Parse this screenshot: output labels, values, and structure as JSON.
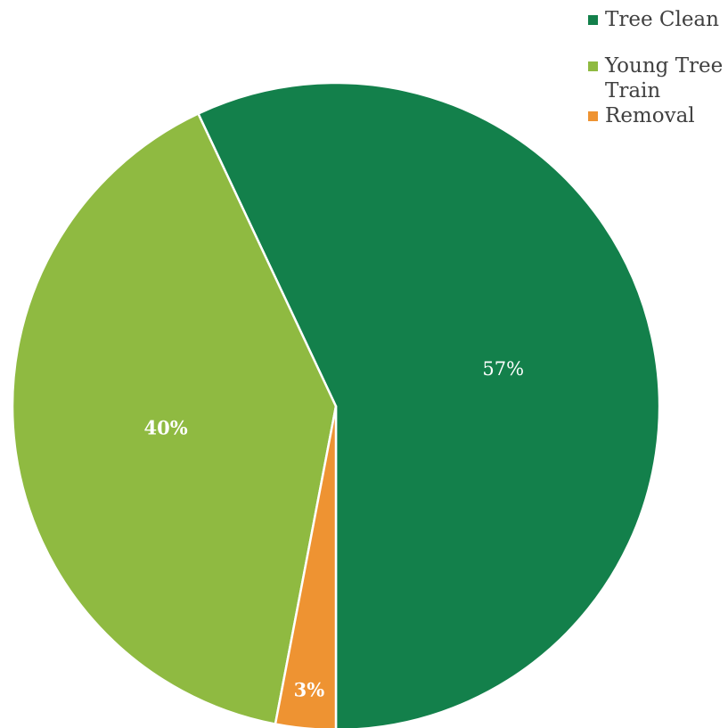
{
  "chart_data": {
    "type": "pie",
    "categories": [
      "Tree Clean",
      "Young Tree Train",
      "Removal"
    ],
    "values": [
      57,
      40,
      3
    ],
    "value_labels": [
      "57%",
      "40%",
      "3%"
    ],
    "colors": [
      "#13804B",
      "#8FBA41",
      "#EE9332"
    ],
    "label_colors": [
      "#ffffff",
      "#ffffff",
      "#ffffff"
    ],
    "label_bold": [
      false,
      true,
      true
    ],
    "start_angle_deg": 0,
    "direction": "counterclockwise-from-bottom",
    "legend_position": "top-right"
  }
}
